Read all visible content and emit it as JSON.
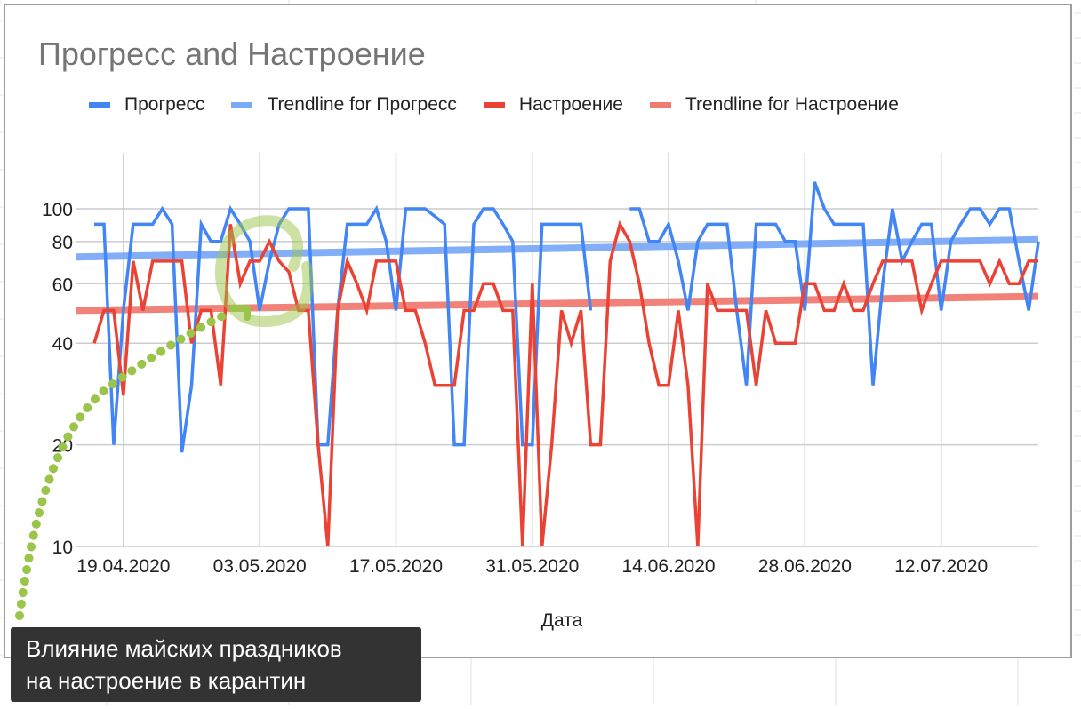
{
  "chart": {
    "title": "Прогресс and Настроение",
    "xlabel": "Дата",
    "legend": [
      {
        "label": "Прогресс",
        "color": "#4285f4"
      },
      {
        "label": "Trendline for Прогресс",
        "color": "#7baaf7"
      },
      {
        "label": "Настроение",
        "color": "#ea4335"
      },
      {
        "label": "Trendline for Настроение",
        "color": "#f07b72"
      }
    ]
  },
  "annotation": {
    "line1": "Влияние майских праздников",
    "line2": "на настроение в карантин",
    "highlight_color": "#9bc44a"
  },
  "chart_data": {
    "type": "line",
    "title": "Прогресс and Настроение",
    "xlabel": "Дата",
    "ylabel": "",
    "yscale": "log",
    "ylim": [
      10,
      125
    ],
    "yticks": [
      10,
      20,
      40,
      60,
      80,
      100
    ],
    "xtick_labels": [
      "19.04.2020",
      "03.05.2020",
      "17.05.2020",
      "31.05.2020",
      "14.06.2020",
      "28.06.2020",
      "12.07.2020"
    ],
    "x_start": "16.04.2020",
    "x_step": "1 day",
    "grid": true,
    "legend_position": "top",
    "series": [
      {
        "name": "Прогресс",
        "color": "#4285f4",
        "values": [
          90,
          90,
          20,
          50,
          90,
          90,
          90,
          100,
          90,
          19,
          30,
          90,
          80,
          80,
          100,
          90,
          80,
          50,
          70,
          90,
          100,
          100,
          100,
          20,
          20,
          50,
          90,
          90,
          90,
          100,
          80,
          50,
          100,
          100,
          100,
          95,
          90,
          20,
          20,
          90,
          100,
          100,
          90,
          80,
          20,
          20,
          90,
          90,
          90,
          90,
          90,
          50,
          null,
          null,
          null,
          100,
          100,
          80,
          80,
          90,
          70,
          50,
          80,
          90,
          90,
          90,
          50,
          30,
          90,
          90,
          90,
          80,
          80,
          50,
          120,
          100,
          90,
          90,
          90,
          90,
          30,
          60,
          100,
          70,
          80,
          90,
          90,
          50,
          80,
          90,
          100,
          100,
          90,
          100,
          100,
          70,
          50,
          80
        ]
      },
      {
        "name": "Trendline for Прогресс",
        "color": "#7baaf7",
        "trend": [
          72,
          81
        ]
      },
      {
        "name": "Настроение",
        "color": "#ea4335",
        "values": [
          40,
          50,
          50,
          28,
          70,
          50,
          70,
          70,
          70,
          70,
          40,
          50,
          50,
          30,
          90,
          60,
          70,
          70,
          80,
          70,
          65,
          50,
          50,
          20,
          10,
          50,
          70,
          60,
          50,
          70,
          70,
          70,
          50,
          50,
          40,
          30,
          30,
          30,
          50,
          50,
          60,
          60,
          50,
          50,
          10,
          60,
          10,
          20,
          50,
          40,
          50,
          20,
          20,
          70,
          90,
          80,
          60,
          40,
          30,
          30,
          50,
          30,
          10,
          60,
          50,
          50,
          50,
          50,
          30,
          50,
          40,
          40,
          40,
          60,
          60,
          50,
          50,
          60,
          50,
          50,
          60,
          70,
          70,
          70,
          70,
          50,
          60,
          70,
          70,
          70,
          70,
          70,
          60,
          70,
          60,
          60,
          70,
          70
        ]
      },
      {
        "name": "Trendline for Настроение",
        "color": "#f07b72",
        "trend": [
          50,
          55
        ]
      }
    ]
  }
}
